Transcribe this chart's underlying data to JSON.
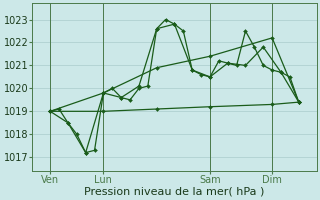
{
  "background_color": "#cce8e8",
  "grid_color": "#aacccc",
  "line_color": "#1a5c1a",
  "xlabel": "Pression niveau de la mer( hPa )",
  "xlabel_fontsize": 8,
  "tick_fontsize": 7,
  "ylim": [
    1016.4,
    1023.7
  ],
  "yticks": [
    1017,
    1018,
    1019,
    1020,
    1021,
    1022,
    1023
  ],
  "xlim": [
    0,
    16
  ],
  "xtick_positions": [
    1,
    4,
    10,
    13.5
  ],
  "xtick_labels": [
    "Ven",
    "Lun",
    "Sam",
    "Dim"
  ],
  "vline_positions": [
    1,
    4,
    10,
    13.5
  ],
  "line1_x": [
    1,
    1.5,
    2,
    2.5,
    3,
    3.5,
    4,
    4.5,
    5,
    5.5,
    6,
    6.5,
    7,
    7.5,
    8,
    8.5,
    9,
    9.5,
    10,
    10.5,
    11,
    11.5,
    12,
    12.5,
    13,
    13.5,
    14,
    14.5,
    15
  ],
  "line1_y": [
    1019.0,
    1019.1,
    1018.5,
    1018.0,
    1017.2,
    1017.3,
    1019.8,
    1020.0,
    1019.6,
    1019.5,
    1020.0,
    1020.1,
    1022.6,
    1023.0,
    1022.8,
    1022.5,
    1020.8,
    1020.6,
    1020.5,
    1021.2,
    1021.1,
    1021.0,
    1022.5,
    1021.8,
    1021.0,
    1020.8,
    1020.7,
    1020.5,
    1019.4
  ],
  "line2_x": [
    1,
    2,
    3,
    4,
    5,
    6,
    7,
    8,
    9,
    10,
    11,
    12,
    13,
    14,
    15
  ],
  "line2_y": [
    1019.0,
    1018.5,
    1017.2,
    1019.8,
    1019.6,
    1020.1,
    1022.6,
    1022.8,
    1020.8,
    1020.5,
    1021.1,
    1021.0,
    1021.8,
    1020.7,
    1019.4
  ],
  "line3_x": [
    1,
    4,
    7,
    10,
    13.5,
    15
  ],
  "line3_y": [
    1019.0,
    1019.8,
    1020.9,
    1021.4,
    1022.2,
    1019.4
  ],
  "line4_x": [
    1,
    4,
    7,
    10,
    13.5,
    15
  ],
  "line4_y": [
    1019.0,
    1019.0,
    1019.1,
    1019.2,
    1019.3,
    1019.4
  ]
}
